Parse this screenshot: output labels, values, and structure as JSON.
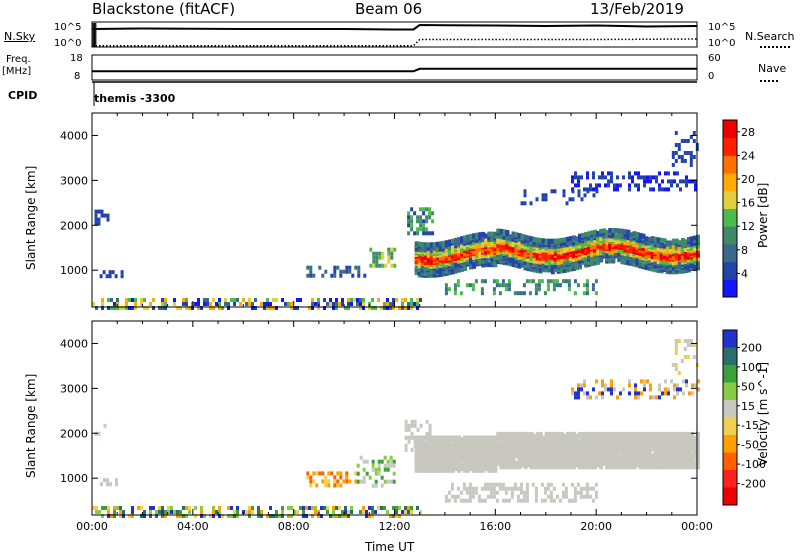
{
  "header": {
    "station": "Blackstone (fitACF)",
    "beam": "Beam 06",
    "date": "13/Feb/2019"
  },
  "meta_labels": {
    "nsky": "N.Sky",
    "nsearch": "N.Search",
    "nsky_ticks": [
      "10^5",
      "10^0"
    ],
    "freq": "Freq.",
    "freq_unit": "[MHz]",
    "freq_ticks": [
      "18",
      "8"
    ],
    "nave": "Nave",
    "nave_ticks": [
      "60",
      "0"
    ],
    "cpid": "CPID",
    "cpid_value": "themis -3300"
  },
  "colors": {
    "power_scale": [
      "#1414ff",
      "#2244aa",
      "#3a6a8a",
      "#3f8a6a",
      "#4cbb4c",
      "#e0d040",
      "#ffaa00",
      "#ff7000",
      "#ff2000",
      "#ee0000"
    ],
    "velocity_scale": [
      "#2233cc",
      "#2a6e6e",
      "#3aa03a",
      "#88cc44",
      "#c8c8c0",
      "#f0d050",
      "#ffa000",
      "#ff6000",
      "#ff2020",
      "#ee0000"
    ],
    "ground_scatter": "#c8c8c0"
  },
  "chart_data": [
    {
      "type": "line",
      "name": "N.Sky / N.Search",
      "ylim_ticks": [
        "10^0",
        "10^5"
      ],
      "series": [
        {
          "name": "N.Sky",
          "style": "solid",
          "x": [
            "00:00",
            "02:00",
            "04:00",
            "06:00",
            "08:00",
            "10:00",
            "12:00",
            "12:45",
            "13:00",
            "14:00",
            "16:00",
            "18:00",
            "20:00",
            "22:00",
            "24:00"
          ],
          "y_fraction": [
            0.72,
            0.74,
            0.73,
            0.72,
            0.72,
            0.72,
            0.7,
            0.7,
            0.88,
            0.87,
            0.86,
            0.84,
            0.86,
            0.82,
            0.84
          ]
        },
        {
          "name": "N.Search",
          "style": "dotted",
          "x": [
            "00:00",
            "12:45",
            "13:00",
            "16:00",
            "20:00",
            "24:00"
          ],
          "y_fraction": [
            0.05,
            0.05,
            0.3,
            0.3,
            0.3,
            0.32
          ]
        }
      ]
    },
    {
      "type": "line",
      "name": "Freq / Nave",
      "freq_ticks_mhz": [
        8,
        18
      ],
      "nave_ticks": [
        0,
        60
      ],
      "series": [
        {
          "name": "Freq.",
          "style": "solid",
          "x": [
            "00:00",
            "12:45",
            "13:00",
            "24:00"
          ],
          "y_fraction": [
            0.35,
            0.35,
            0.45,
            0.45
          ]
        }
      ]
    },
    {
      "type": "heatmap",
      "title": "Power",
      "xlabel": "Time UT",
      "ylabel": "Slant Range [km]",
      "x_ticks": [
        "00:00",
        "04:00",
        "08:00",
        "12:00",
        "16:00",
        "20:00",
        "00:00"
      ],
      "xlim_hours": [
        0,
        24
      ],
      "y_ticks": [
        1000,
        2000,
        3000,
        4000
      ],
      "ylim_km": [
        180,
        4500
      ],
      "colorbar": {
        "label": "Power [dB]",
        "ticks": [
          4,
          8,
          12,
          16,
          20,
          24,
          28
        ],
        "range": [
          0,
          30
        ]
      },
      "features": [
        {
          "name": "near-range band",
          "t": [
            0,
            13
          ],
          "range_km": [
            180,
            400
          ],
          "value": 12
        },
        {
          "name": "main echo band",
          "t": [
            12.8,
            24
          ],
          "range_km": [
            1200,
            1800
          ],
          "value": 26
        },
        {
          "name": "early patch",
          "t": [
            0.3,
            1.2
          ],
          "range_km": [
            900,
            1000
          ],
          "value": 8
        },
        {
          "name": "evening patch",
          "t": [
            8.5,
            10.5
          ],
          "range_km": [
            800,
            1400
          ],
          "value": 10
        },
        {
          "name": "far range",
          "t": [
            19,
            24
          ],
          "range_km": [
            2800,
            3200
          ],
          "value": 6
        }
      ]
    },
    {
      "type": "heatmap",
      "title": "Velocity",
      "xlabel": "Time UT",
      "ylabel": "Slant Range [km]",
      "x_ticks": [
        "00:00",
        "04:00",
        "08:00",
        "12:00",
        "16:00",
        "20:00",
        "00:00"
      ],
      "xlim_hours": [
        0,
        24
      ],
      "y_ticks": [
        1000,
        2000,
        3000,
        4000
      ],
      "ylim_km": [
        180,
        4500
      ],
      "colorbar": {
        "label": "Velocity [m s^-1]",
        "ticks": [
          200,
          100,
          50,
          15,
          -15,
          -50,
          -100,
          -200
        ],
        "range": [
          -250,
          250
        ]
      },
      "features": [
        {
          "name": "ground scatter",
          "t": [
            12.8,
            24
          ],
          "range_km": [
            1300,
            2100
          ],
          "value": 0
        },
        {
          "name": "positive flow",
          "t": [
            8.5,
            10.5
          ],
          "range_km": [
            800,
            1200
          ],
          "value": -60
        },
        {
          "name": "near-range flow",
          "t": [
            3,
            13
          ],
          "range_km": [
            180,
            400
          ],
          "value": -40
        }
      ]
    }
  ],
  "footer": {
    "xlabel": "Time UT"
  }
}
